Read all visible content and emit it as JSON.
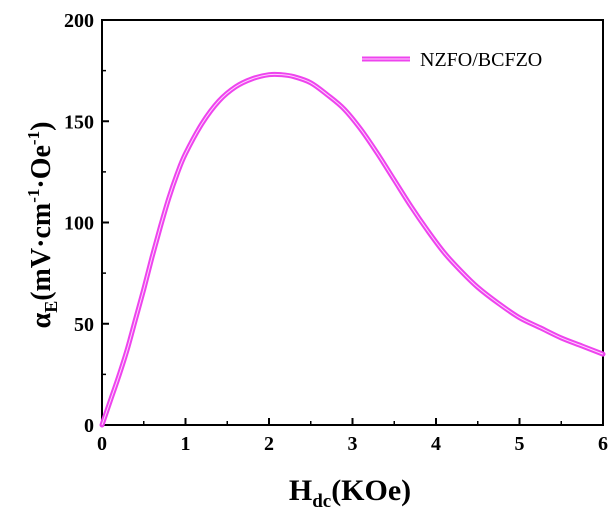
{
  "chart_data": {
    "type": "line",
    "title": "",
    "xlabel_main": "H",
    "xlabel_sub": "dc",
    "xlabel_unit": "(KOe)",
    "ylabel_main": "α",
    "ylabel_sub": "E",
    "ylabel_unit_1": "(mV·cm",
    "ylabel_exp_1": "-1",
    "ylabel_unit_2": "·Oe",
    "ylabel_exp_2": "-1",
    "ylabel_close": ")",
    "xlim": [
      0,
      6
    ],
    "ylim": [
      0,
      200
    ],
    "xticks": [
      0,
      1,
      2,
      3,
      4,
      5,
      6
    ],
    "yticks": [
      0,
      50,
      100,
      150,
      200
    ],
    "grid": false,
    "legend_position": "top-right",
    "series": [
      {
        "name": "NZFO/BCFZO",
        "color": "#ee44ee",
        "x": [
          0,
          0.1,
          0.2,
          0.3,
          0.4,
          0.5,
          0.6,
          0.7,
          0.8,
          0.9,
          1.0,
          1.2,
          1.4,
          1.6,
          1.8,
          2.0,
          2.15,
          2.3,
          2.5,
          2.7,
          2.9,
          3.1,
          3.3,
          3.5,
          3.7,
          3.9,
          4.1,
          4.3,
          4.5,
          4.75,
          5.0,
          5.25,
          5.5,
          5.75,
          6.0
        ],
        "y": [
          0,
          12,
          24,
          37,
          52,
          67,
          83,
          98,
          112,
          124,
          134,
          149,
          160,
          167,
          171,
          173,
          173,
          172,
          169,
          163,
          156,
          146,
          134,
          121,
          108,
          96,
          85,
          76,
          68,
          60,
          53,
          48,
          43,
          39,
          35
        ]
      }
    ]
  }
}
